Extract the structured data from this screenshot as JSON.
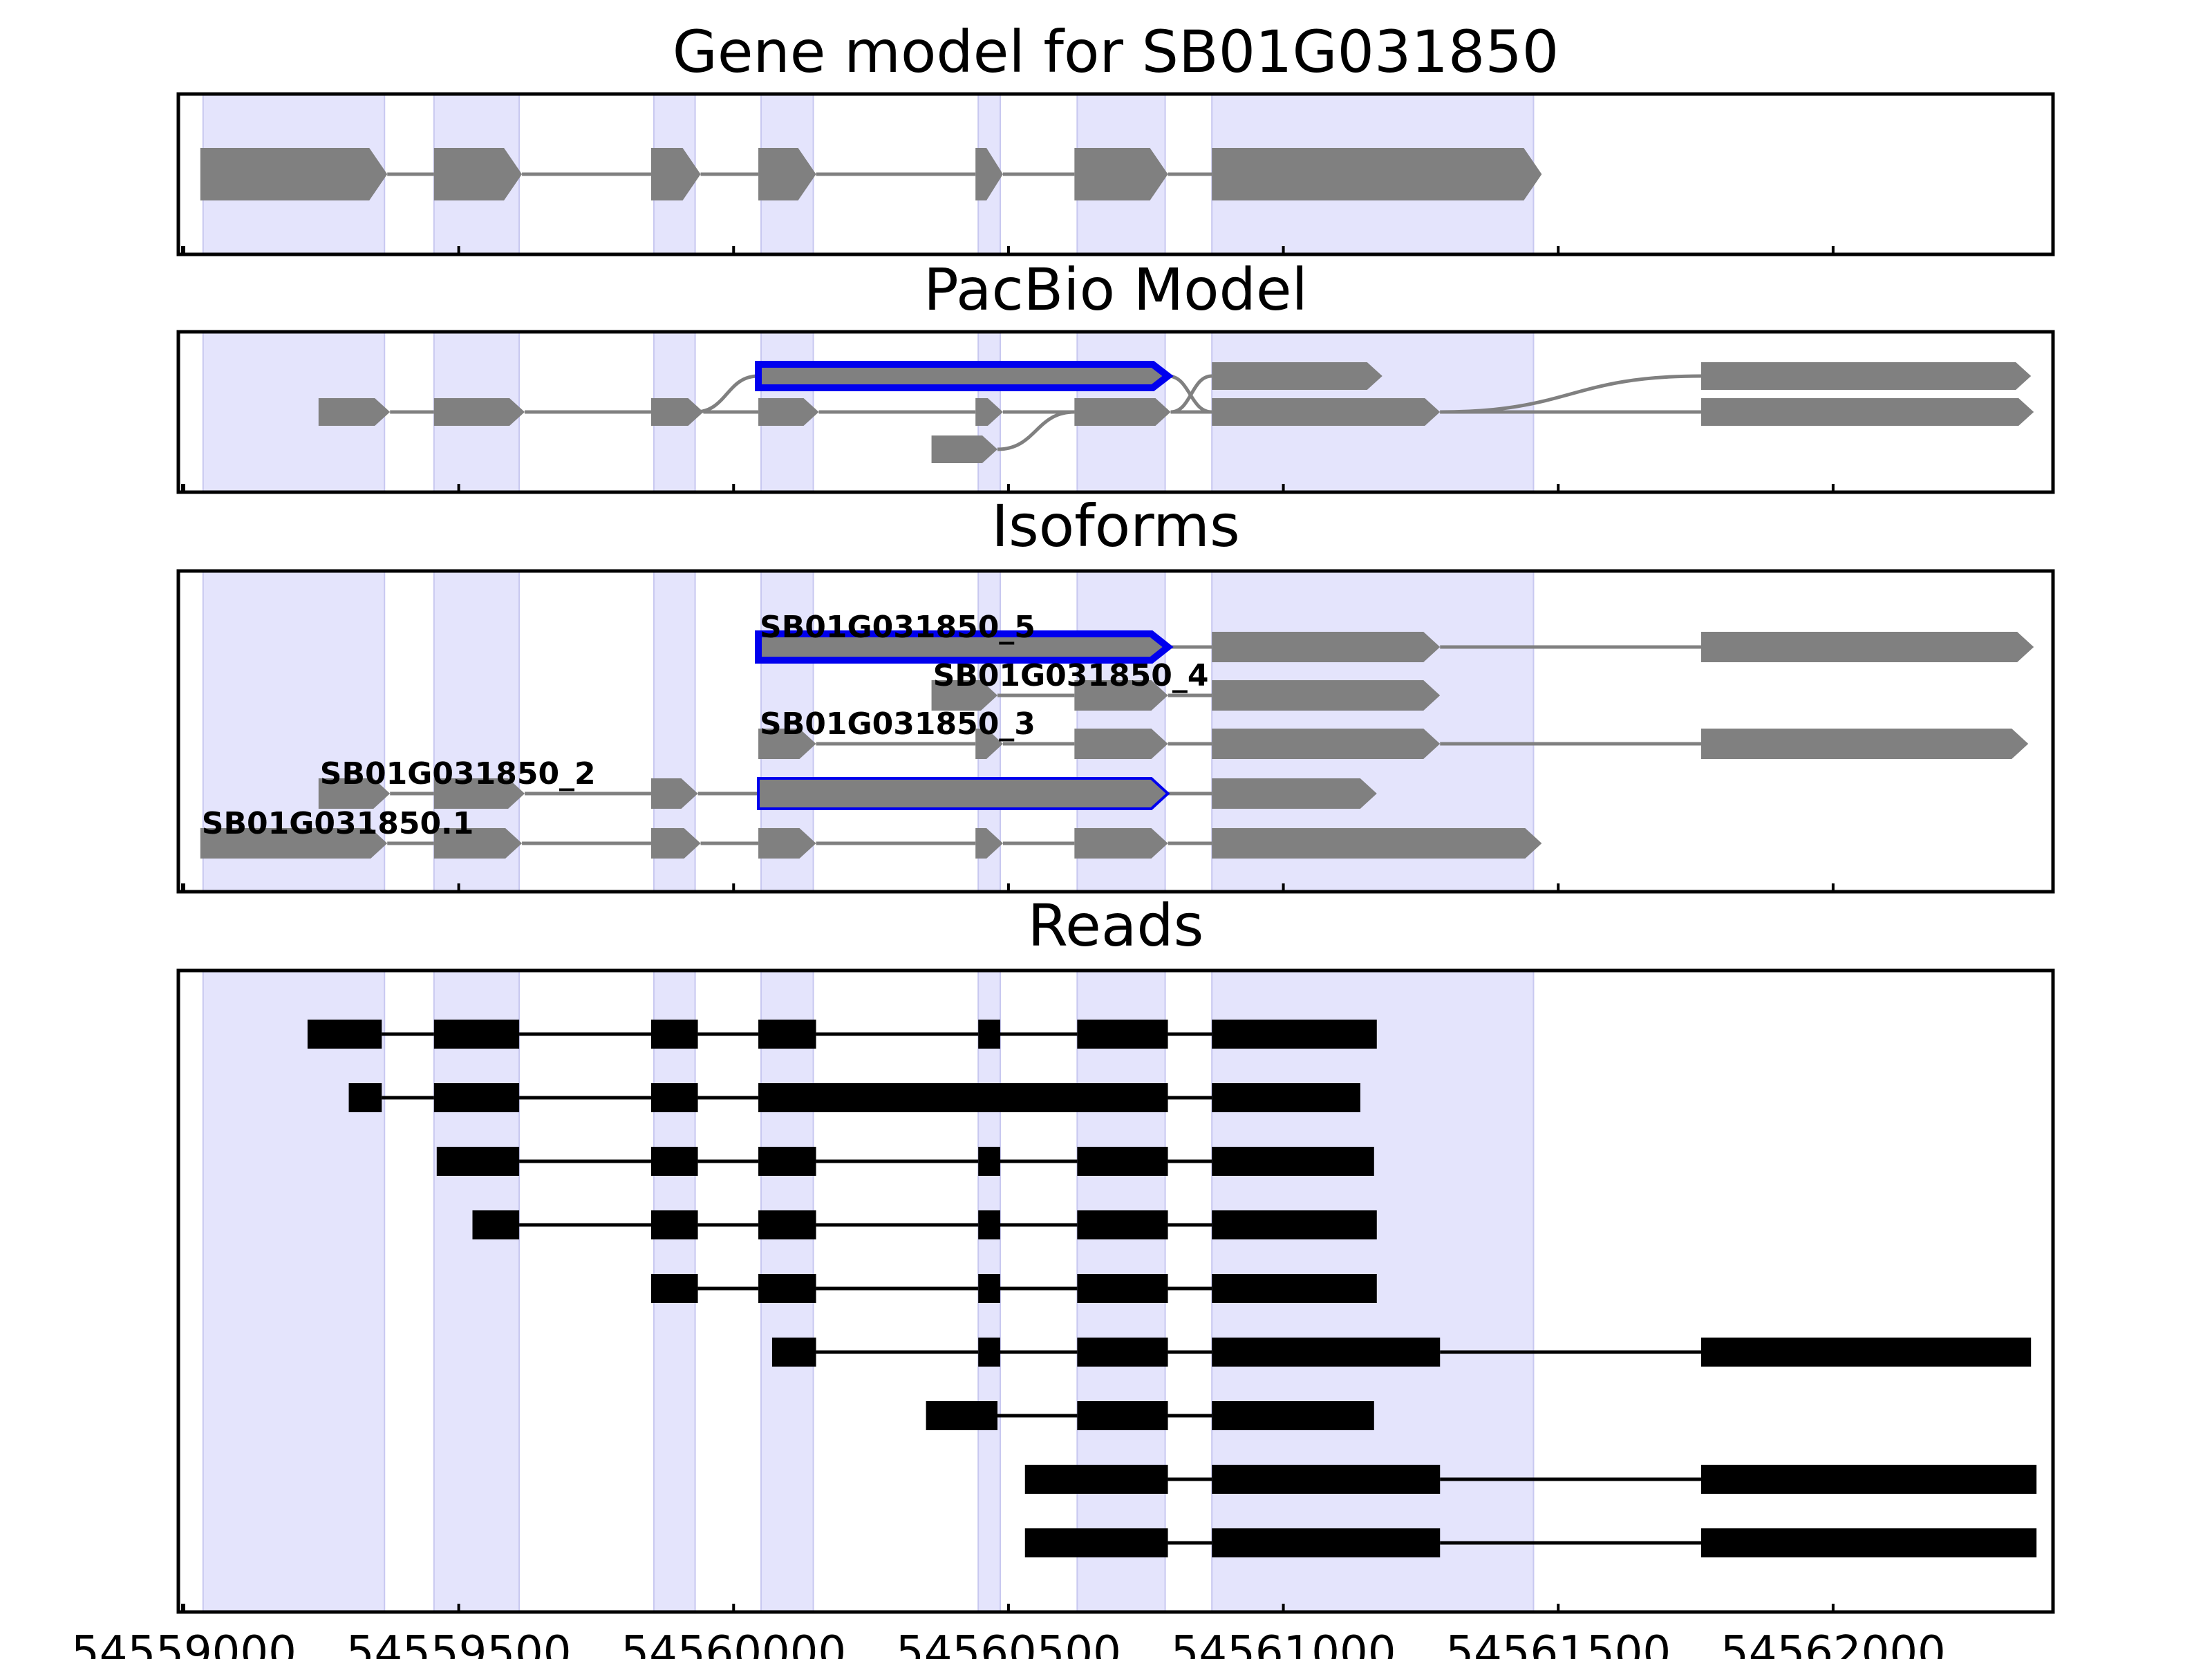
{
  "chart_data": {
    "type": "gene-model-tracks",
    "xlim": [
      54558990,
      54562400
    ],
    "x_ticks": [
      54559000,
      54559500,
      54560000,
      54560500,
      54561000,
      54561500,
      54562000
    ],
    "x_tick_labels": [
      "54559000",
      "54559500",
      "54560000",
      "54560500",
      "54561000",
      "54561500",
      "54562000"
    ],
    "colors": {
      "shade": "#e4e4fc",
      "exon": "#808080",
      "intron": "#808080",
      "highlight": "#0000ee",
      "read": "#000000"
    },
    "shaded_regions": [
      [
        54559035,
        54559365
      ],
      [
        54559455,
        54559610
      ],
      [
        54559855,
        54559930
      ],
      [
        54560050,
        54560145
      ],
      [
        54560445,
        54560485
      ],
      [
        54560625,
        54560785
      ],
      [
        54560870,
        54561455
      ]
    ],
    "panels": [
      {
        "title": "Gene model for SB01G031850",
        "kind": "gene",
        "rows": 1,
        "transcripts": [
          {
            "row": 0,
            "exons": [
              [
                54559030,
                54559370
              ],
              [
                54559455,
                54559615
              ],
              [
                54559850,
                54559940
              ],
              [
                54560045,
                54560150
              ],
              [
                54560440,
                54560490
              ],
              [
                54560620,
                54560790
              ],
              [
                54560870,
                54561470
              ]
            ]
          }
        ]
      },
      {
        "title": "PacBio Model",
        "kind": "pacbio",
        "rows": 3,
        "transcripts": [
          {
            "row": 0,
            "highlight": true,
            "exons": [
              [
                54560045,
                54560790
              ]
            ]
          },
          {
            "row": 0,
            "exons": [
              [
                54560870,
                54561180
              ]
            ]
          },
          {
            "row": 0,
            "exons": [
              [
                54561760,
                54562360
              ]
            ]
          },
          {
            "row": 1,
            "exons": [
              [
                54559245,
                54559375
              ],
              [
                54559455,
                54559620
              ],
              [
                54559850,
                54559945
              ],
              [
                54560045,
                54560155
              ],
              [
                54560440,
                54560490
              ],
              [
                54560620,
                54560795
              ],
              [
                54560870,
                54561285
              ],
              [
                54561760,
                54562365
              ]
            ]
          },
          {
            "row": 2,
            "exons": [
              [
                54560360,
                54560480
              ]
            ]
          }
        ],
        "connectors": [
          {
            "from": [
              54559930,
              1
            ],
            "to": [
              54560045,
              0
            ]
          },
          {
            "from": [
              54560480,
              2
            ],
            "to": [
              54560620,
              1
            ]
          },
          {
            "from": [
              54560790,
              0
            ],
            "to": [
              54560870,
              1
            ]
          },
          {
            "from": [
              54560795,
              1
            ],
            "to": [
              54560870,
              0
            ]
          },
          {
            "from": [
              54561285,
              1
            ],
            "to": [
              54561760,
              0
            ]
          }
        ]
      },
      {
        "title": "Isoforms",
        "kind": "isoforms",
        "rows": 5,
        "transcripts": [
          {
            "row": 0,
            "label": "SB01G031850_5",
            "highlight": "thick",
            "exons": [
              [
                54560045,
                54560790
              ],
              [
                54560870,
                54561285
              ],
              [
                54561760,
                54562365
              ]
            ]
          },
          {
            "row": 1,
            "label": "SB01G031850_4",
            "exons": [
              [
                54560360,
                54560480
              ],
              [
                54560620,
                54560790
              ],
              [
                54560870,
                54561285
              ]
            ]
          },
          {
            "row": 2,
            "label": "SB01G031850_3",
            "exons": [
              [
                54560045,
                54560150
              ],
              [
                54560440,
                54560490
              ],
              [
                54560620,
                54560790
              ],
              [
                54560870,
                54561285
              ],
              [
                54561760,
                54562355
              ]
            ]
          },
          {
            "row": 3,
            "label": "SB01G031850_2",
            "highlight": "thin",
            "exons": [
              [
                54559245,
                54559375
              ],
              [
                54559455,
                54559620
              ],
              [
                54559850,
                54559935
              ],
              [
                54560045,
                54560790
              ],
              [
                54560870,
                54561170
              ]
            ]
          },
          {
            "row": 4,
            "label": "SB01G031850.1",
            "exons": [
              [
                54559030,
                54559370
              ],
              [
                54559455,
                54559615
              ],
              [
                54559850,
                54559940
              ],
              [
                54560045,
                54560150
              ],
              [
                54560440,
                54560490
              ],
              [
                54560620,
                54560790
              ],
              [
                54560870,
                54561470
              ]
            ]
          }
        ]
      },
      {
        "title": "Reads",
        "kind": "reads",
        "rows": 9,
        "transcripts": [
          {
            "row": 0,
            "exons": [
              [
                54559225,
                54559360
              ],
              [
                54559455,
                54559610
              ],
              [
                54559850,
                54559935
              ],
              [
                54560045,
                54560150
              ],
              [
                54560445,
                54560485
              ],
              [
                54560625,
                54560790
              ],
              [
                54560870,
                54561170
              ]
            ]
          },
          {
            "row": 1,
            "exons": [
              [
                54559300,
                54559360
              ],
              [
                54559455,
                54559610
              ],
              [
                54559850,
                54559935
              ],
              [
                54560045,
                54560790
              ],
              [
                54560870,
                54561140
              ]
            ]
          },
          {
            "row": 2,
            "exons": [
              [
                54559460,
                54559610
              ],
              [
                54559850,
                54559935
              ],
              [
                54560045,
                54560150
              ],
              [
                54560445,
                54560485
              ],
              [
                54560625,
                54560790
              ],
              [
                54560870,
                54561165
              ]
            ]
          },
          {
            "row": 3,
            "exons": [
              [
                54559525,
                54559610
              ],
              [
                54559850,
                54559935
              ],
              [
                54560045,
                54560150
              ],
              [
                54560445,
                54560485
              ],
              [
                54560625,
                54560790
              ],
              [
                54560870,
                54561170
              ]
            ]
          },
          {
            "row": 4,
            "exons": [
              [
                54559850,
                54559935
              ],
              [
                54560045,
                54560150
              ],
              [
                54560445,
                54560485
              ],
              [
                54560625,
                54560790
              ],
              [
                54560870,
                54561170
              ]
            ]
          },
          {
            "row": 5,
            "exons": [
              [
                54560070,
                54560150
              ],
              [
                54560445,
                54560485
              ],
              [
                54560625,
                54560790
              ],
              [
                54560870,
                54561285
              ],
              [
                54561760,
                54562360
              ]
            ]
          },
          {
            "row": 6,
            "exons": [
              [
                54560350,
                54560480
              ],
              [
                54560625,
                54560790
              ],
              [
                54560870,
                54561165
              ]
            ]
          },
          {
            "row": 7,
            "exons": [
              [
                54560530,
                54560790
              ],
              [
                54560870,
                54561285
              ],
              [
                54561760,
                54562370
              ]
            ]
          },
          {
            "row": 8,
            "exons": [
              [
                54560530,
                54560790
              ],
              [
                54560870,
                54561285
              ],
              [
                54561760,
                54562370
              ]
            ]
          }
        ]
      }
    ]
  }
}
